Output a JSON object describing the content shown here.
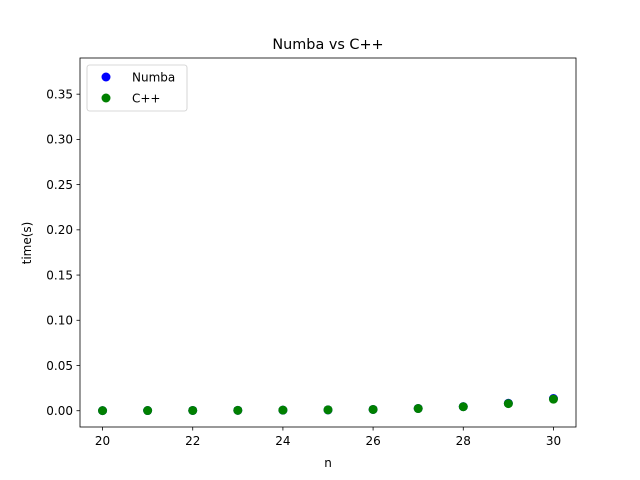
{
  "chart_data": {
    "type": "scatter",
    "title": "Numba vs C++",
    "xlabel": "n",
    "ylabel": "time(s)",
    "xlim": [
      19.5,
      30.5
    ],
    "ylim": [
      -0.018,
      0.39
    ],
    "xticks": [
      20,
      22,
      24,
      26,
      28,
      30
    ],
    "xtick_labels": [
      "20",
      "22",
      "24",
      "26",
      "28",
      "30"
    ],
    "yticks": [
      0.0,
      0.05,
      0.1,
      0.15,
      0.2,
      0.25,
      0.3,
      0.35
    ],
    "ytick_labels": [
      "0.00",
      "0.05",
      "0.10",
      "0.15",
      "0.20",
      "0.25",
      "0.30",
      "0.35"
    ],
    "grid": false,
    "legend_position": "top-left",
    "series": [
      {
        "name": "Numba",
        "color": "#0000ff",
        "x": [
          20,
          21,
          22,
          23,
          24,
          25,
          26,
          27,
          28,
          29,
          30
        ],
        "y": [
          0.0001,
          0.0002,
          0.0003,
          0.0004,
          0.0006,
          0.0009,
          0.0014,
          0.0025,
          0.0045,
          0.0082,
          0.0135
        ]
      },
      {
        "name": "C++",
        "color": "#008000",
        "x": [
          20,
          21,
          22,
          23,
          24,
          25,
          26,
          27,
          28,
          29,
          30
        ],
        "y": [
          0.0001,
          0.0002,
          0.0003,
          0.0004,
          0.0007,
          0.001,
          0.0014,
          0.0024,
          0.0044,
          0.0079,
          0.0128
        ]
      }
    ]
  }
}
